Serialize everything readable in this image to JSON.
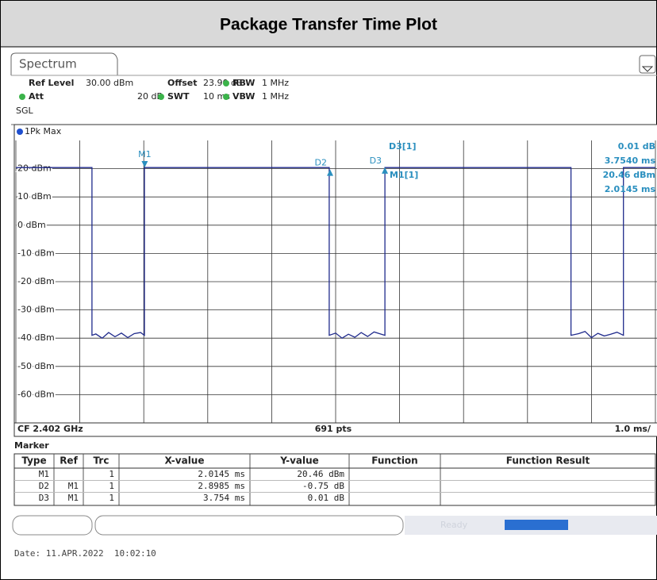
{
  "header": {
    "title": "Package Transfer Time Plot"
  },
  "tab": "Spectrum",
  "settings": {
    "rows": [
      [
        {
          "label": "Ref Level",
          "value": "30.00 dBm"
        },
        {
          "label": "Offset",
          "value": "23.90 dB"
        },
        {
          "label": "RBW",
          "value": "1 MHz"
        }
      ],
      [
        {
          "label": "Att",
          "value": "20 dB"
        },
        {
          "label": "SWT",
          "value": "10 ms"
        },
        {
          "label": "VBW",
          "value": "1 MHz"
        }
      ]
    ],
    "mode": "SGL"
  },
  "chart_data": {
    "type": "line",
    "x": [
      0,
      1.19,
      1.19,
      1.25,
      1.35,
      1.45,
      1.55,
      1.65,
      1.75,
      1.85,
      1.95,
      2.01,
      2.01,
      4.9,
      4.9,
      5.0,
      5.1,
      5.2,
      5.3,
      5.4,
      5.5,
      5.6,
      5.7,
      5.77,
      5.77,
      8.68,
      8.68,
      8.8,
      8.9,
      9.0,
      9.1,
      9.2,
      9.3,
      9.4,
      9.5,
      9.5,
      10
    ],
    "series": [
      {
        "name": "1Pk Max",
        "color": "#1f2a8c",
        "values": [
          20.4,
          20.4,
          -39,
          -38.5,
          -40,
          -38,
          -39.5,
          -38.2,
          -39.8,
          -38.4,
          -38,
          -39,
          20.4,
          20.4,
          -39,
          -38.2,
          -40,
          -38.6,
          -39.7,
          -38,
          -39.4,
          -37.8,
          -38.5,
          -39,
          20.4,
          20.4,
          -39,
          -38.4,
          -37.6,
          -39.8,
          -38.3,
          -39.2,
          -38.6,
          -37.9,
          -39,
          20.4,
          20.4
        ]
      }
    ],
    "xlim": [
      0,
      10
    ],
    "xticks": [
      0,
      1,
      2,
      3,
      4,
      5,
      6,
      7,
      8,
      9,
      10
    ],
    "ylim": [
      -70,
      30
    ],
    "yticks": [
      {
        "value": -60,
        "label": "-60 dBm"
      },
      {
        "value": -50,
        "label": "-50 dBm"
      },
      {
        "value": -40,
        "label": "-40 dBm"
      },
      {
        "value": -30,
        "label": "-30 dBm"
      },
      {
        "value": -20,
        "label": "-20 dBm"
      },
      {
        "value": -10,
        "label": "-10 dBm"
      },
      {
        "value": 0,
        "label": "0 dBm"
      },
      {
        "value": 10,
        "label": "10 dBm"
      },
      {
        "value": 20,
        "label": "20 dBm"
      }
    ],
    "grid": true,
    "markers": [
      {
        "name": "M1",
        "x": 2.0145,
        "y": 20.46,
        "color": "#2a8fbf"
      },
      {
        "name": "D2",
        "x": 4.913,
        "y": 19.7,
        "color": "#2a8fbf"
      },
      {
        "name": "D3",
        "x": 5.77,
        "y": 20.47,
        "color": "#2a8fbf"
      }
    ],
    "readout": [
      [
        "D3[1]",
        "0.01 dB",
        "3.7540 ms"
      ],
      [
        "M1[1]",
        "20.46 dBm",
        "2.0145 ms"
      ]
    ],
    "footer": {
      "left": "CF 2.402 GHz",
      "center": "691 pts",
      "right": "1.0 ms/"
    }
  },
  "marker_table": {
    "title": "Marker",
    "columns": [
      "Type",
      "Ref",
      "Trc",
      "X-value",
      "Y-value",
      "Function",
      "Function Result"
    ],
    "rows": [
      [
        "M1",
        "",
        "1",
        "2.0145 ms",
        "20.46 dBm",
        "",
        ""
      ],
      [
        "D2",
        "M1",
        "1",
        "2.8985 ms",
        "-0.75 dB",
        "",
        ""
      ],
      [
        "D3",
        "M1",
        "1",
        "3.754 ms",
        "0.01 dB",
        "",
        ""
      ]
    ]
  },
  "status": "Ready",
  "date": "Date: 11.APR.2022  10:02:10"
}
